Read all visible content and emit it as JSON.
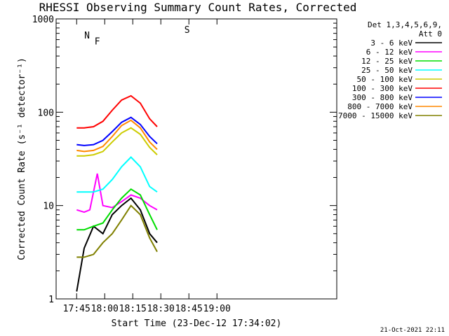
{
  "chart_data": {
    "type": "line",
    "title": "RHESSI Observing Summary Count Rates, Corrected",
    "xlabel": "Start Time (23-Dec-12 17:34:02)",
    "ylabel": "Corrected Count Rate (s⁻¹ detector⁻¹)",
    "yscale": "log",
    "ylim": [
      1,
      1000
    ],
    "xlim_minutes": [
      0,
      150
    ],
    "x_ticks": [
      "17:45",
      "18:00",
      "18:15",
      "18:30",
      "18:45",
      "19:00"
    ],
    "x_tick_minutes": [
      10.97,
      25.97,
      40.97,
      55.97,
      70.97,
      85.97
    ],
    "y_ticks": [
      "1",
      "10",
      "100",
      "1000"
    ],
    "y_tick_values": [
      1,
      10,
      100,
      1000
    ],
    "grid": false,
    "legend_position": "right",
    "legend_header": [
      "Det 1,3,4,5,6,9,",
      "Att 0"
    ],
    "timestamp": "21-Oct-2021 22:11",
    "series": [
      {
        "name": "3 - 6 keV",
        "color": "#000000",
        "x": [
          11,
          15,
          20,
          25,
          30,
          35,
          40,
          45,
          50,
          54
        ],
        "y": [
          1.2,
          3.5,
          6,
          5,
          8,
          10,
          12,
          9,
          5,
          4
        ]
      },
      {
        "name": "6 - 12 keV",
        "color": "#ff00ff",
        "x": [
          11,
          15,
          18,
          20,
          22,
          25,
          30,
          35,
          40,
          45,
          50,
          54
        ],
        "y": [
          9,
          8.5,
          9,
          14,
          22,
          10,
          9.5,
          11,
          13,
          12,
          10,
          9
        ]
      },
      {
        "name": "12 - 25 keV",
        "color": "#00dd00",
        "x": [
          11,
          15,
          20,
          25,
          30,
          35,
          40,
          45,
          50,
          54
        ],
        "y": [
          5.5,
          5.5,
          6,
          6.5,
          9,
          12,
          15,
          13,
          8,
          5.5
        ]
      },
      {
        "name": "25 - 50 keV",
        "color": "#00ffff",
        "x": [
          11,
          15,
          20,
          25,
          30,
          35,
          40,
          45,
          50,
          54
        ],
        "y": [
          14,
          14,
          14,
          15,
          19,
          26,
          33,
          26,
          16,
          14
        ]
      },
      {
        "name": "50 - 100 keV",
        "color": "#cccc00",
        "x": [
          11,
          15,
          20,
          25,
          30,
          35,
          40,
          45,
          50,
          54
        ],
        "y": [
          34,
          34,
          35,
          38,
          48,
          60,
          68,
          58,
          42,
          35
        ]
      },
      {
        "name": "100 - 300 keV",
        "color": "#ff0000",
        "x": [
          11,
          15,
          20,
          25,
          30,
          35,
          40,
          45,
          50,
          54
        ],
        "y": [
          68,
          68,
          70,
          80,
          105,
          135,
          150,
          125,
          85,
          70
        ]
      },
      {
        "name": "300 - 800 keV",
        "color": "#0000ff",
        "x": [
          11,
          15,
          20,
          25,
          30,
          35,
          40,
          45,
          50,
          54
        ],
        "y": [
          45,
          44,
          45,
          50,
          62,
          78,
          88,
          74,
          55,
          46
        ]
      },
      {
        "name": "800 - 7000 keV",
        "color": "#ff8800",
        "x": [
          11,
          15,
          20,
          25,
          30,
          35,
          40,
          45,
          50,
          54
        ],
        "y": [
          39,
          38,
          39,
          43,
          55,
          72,
          82,
          68,
          48,
          40
        ]
      },
      {
        "name": "7000 - 15000 keV",
        "color": "#808000",
        "x": [
          11,
          15,
          20,
          25,
          30,
          35,
          40,
          45,
          50,
          54
        ],
        "y": [
          2.8,
          2.8,
          3,
          4,
          5,
          7,
          10,
          8,
          4.5,
          3.2
        ]
      }
    ],
    "annotations": [
      {
        "label": "N",
        "color": "#00ffff",
        "x_minutes": 16.5,
        "y": 660
      },
      {
        "label": "F",
        "color": "#ff0000",
        "x_minutes": 22,
        "y": 570
      },
      {
        "label": "S",
        "color": "#ff8800",
        "x_minutes": 70,
        "y": 760
      }
    ]
  }
}
